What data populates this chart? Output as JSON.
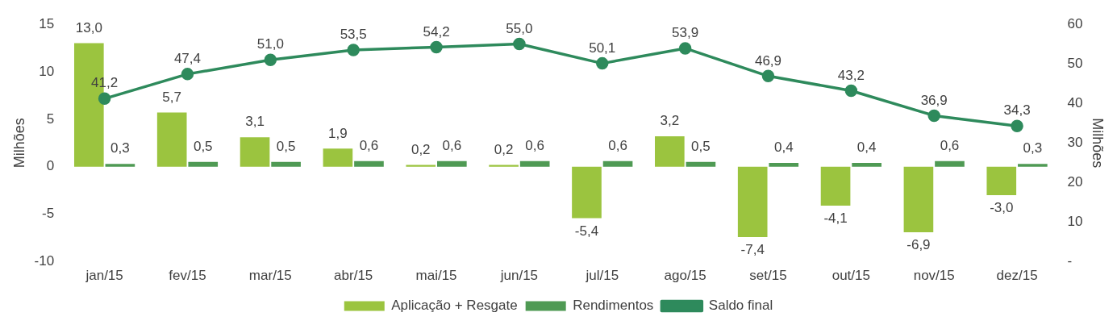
{
  "chart_data": {
    "type": "bar",
    "categories": [
      "jan/15",
      "fev/15",
      "mar/15",
      "abr/15",
      "mai/15",
      "jun/15",
      "jul/15",
      "ago/15",
      "set/15",
      "out/15",
      "nov/15",
      "dez/15"
    ],
    "ylabel": "Milhões",
    "y2label": "Milhões",
    "ylim": [
      -10,
      15
    ],
    "yticks": [
      -10,
      -5,
      0,
      5,
      10,
      15
    ],
    "y2lim": [
      0,
      60
    ],
    "y2ticks": [
      {
        "value": 0,
        "label": "-"
      },
      10,
      20,
      30,
      40,
      50,
      60
    ],
    "grid": false,
    "legend": "bottom",
    "marker": "circle",
    "line_style": "solid",
    "series": [
      {
        "name": "Aplicação + Resgate",
        "color": "#9bc43f",
        "values": [
          13.0,
          5.7,
          3.1,
          1.9,
          0.2,
          0.2,
          -5.4,
          3.2,
          -7.4,
          -4.1,
          -6.9,
          -3.0
        ],
        "value_labels": [
          "13,0",
          "5,7",
          "3,1",
          "1,9",
          "0,2",
          "0,2",
          "-5,4",
          "3,2",
          "-7,4",
          "-4,1",
          "-6,9",
          "-3,0"
        ]
      },
      {
        "name": "Rendimentos",
        "color": "#4f9a54",
        "values": [
          0.3,
          0.5,
          0.5,
          0.6,
          0.6,
          0.6,
          0.6,
          0.5,
          0.4,
          0.4,
          0.6,
          0.3
        ],
        "value_labels": [
          "0,3",
          "0,5",
          "0,5",
          "0,6",
          "0,6",
          "0,6",
          "0,6",
          "0,5",
          "0,4",
          "0,4",
          "0,6",
          "0,3"
        ]
      },
      {
        "name": "Saldo final",
        "type": "line",
        "axis": "y2",
        "color": "#2e8a5c",
        "values": [
          41.2,
          47.4,
          51.0,
          53.5,
          54.2,
          55.0,
          50.1,
          53.9,
          46.9,
          43.2,
          36.9,
          34.3
        ],
        "value_labels": [
          "41,2",
          "47,4",
          "51,0",
          "53,5",
          "54,2",
          "55,0",
          "50,1",
          "53,9",
          "46,9",
          "43,2",
          "36,9",
          "34,3"
        ]
      }
    ]
  }
}
